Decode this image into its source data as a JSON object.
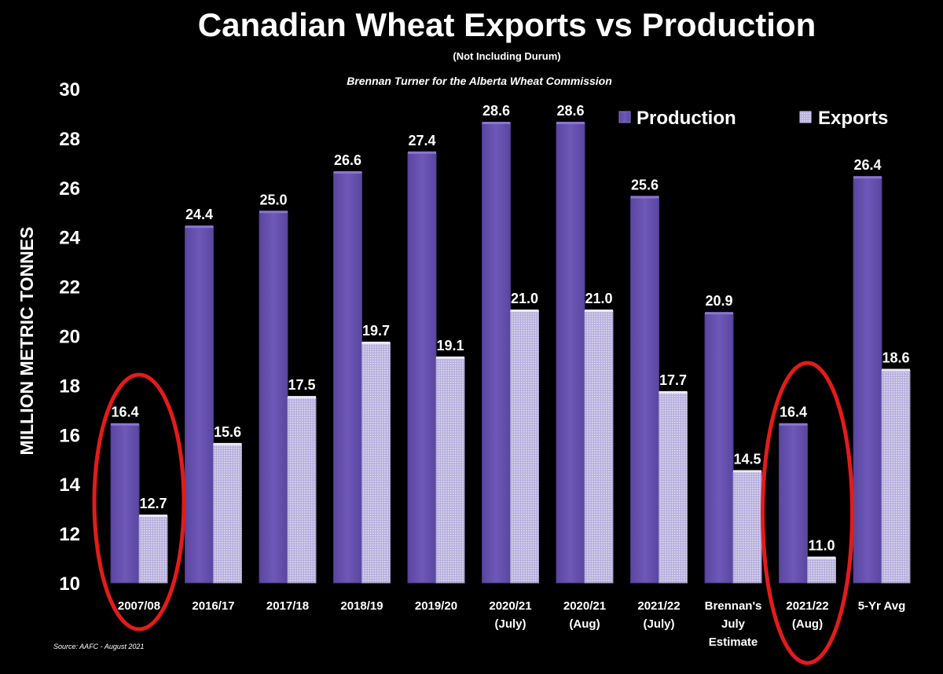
{
  "chart_data": {
    "type": "bar",
    "title": "Canadian Wheat Exports vs Production",
    "subtitle": "(Not Including Durum)",
    "byline": "Brennan Turner for the Alberta Wheat Commission",
    "ylabel": "MILLION METRIC TONNES",
    "xlabel": "",
    "ylim": [
      10,
      30
    ],
    "yticks": [
      10,
      12,
      14,
      16,
      18,
      20,
      22,
      24,
      26,
      28,
      30
    ],
    "grid": false,
    "legend_position": "top-right",
    "categories": [
      [
        "2007/08"
      ],
      [
        "2016/17"
      ],
      [
        "2017/18"
      ],
      [
        "2018/19"
      ],
      [
        "2019/20"
      ],
      [
        "2020/21",
        "(July)"
      ],
      [
        "2020/21",
        "(Aug)"
      ],
      [
        "2021/22",
        "(July)"
      ],
      [
        "Brennan's",
        "July",
        "Estimate"
      ],
      [
        "2021/22",
        "(Aug)"
      ],
      [
        "5-Yr Avg"
      ]
    ],
    "series": [
      {
        "name": "Production",
        "values": [
          16.4,
          24.4,
          25.0,
          26.6,
          27.4,
          28.6,
          28.6,
          25.6,
          20.9,
          16.4,
          26.4
        ],
        "labels": [
          "16.4",
          "24.4",
          "25.0",
          "26.6",
          "27.4",
          "28.6",
          "28.6",
          "25.6",
          "20.9",
          "16.4",
          "26.4"
        ],
        "color": "#6a54b0"
      },
      {
        "name": "Exports",
        "values": [
          12.7,
          15.6,
          17.5,
          19.7,
          19.1,
          21.0,
          21.0,
          17.7,
          14.5,
          11.0,
          18.6
        ],
        "labels": [
          "12.7",
          "15.6",
          "17.5",
          "19.7",
          "19.1",
          "21.0",
          "21.0",
          "17.7",
          "14.5",
          "11.0",
          "18.6"
        ],
        "color": "#c9c3e6"
      }
    ],
    "highlighted_categories": [
      0,
      9
    ],
    "highlight_color": "#e31b1b",
    "source": "Source: AAFC - August 2021"
  }
}
